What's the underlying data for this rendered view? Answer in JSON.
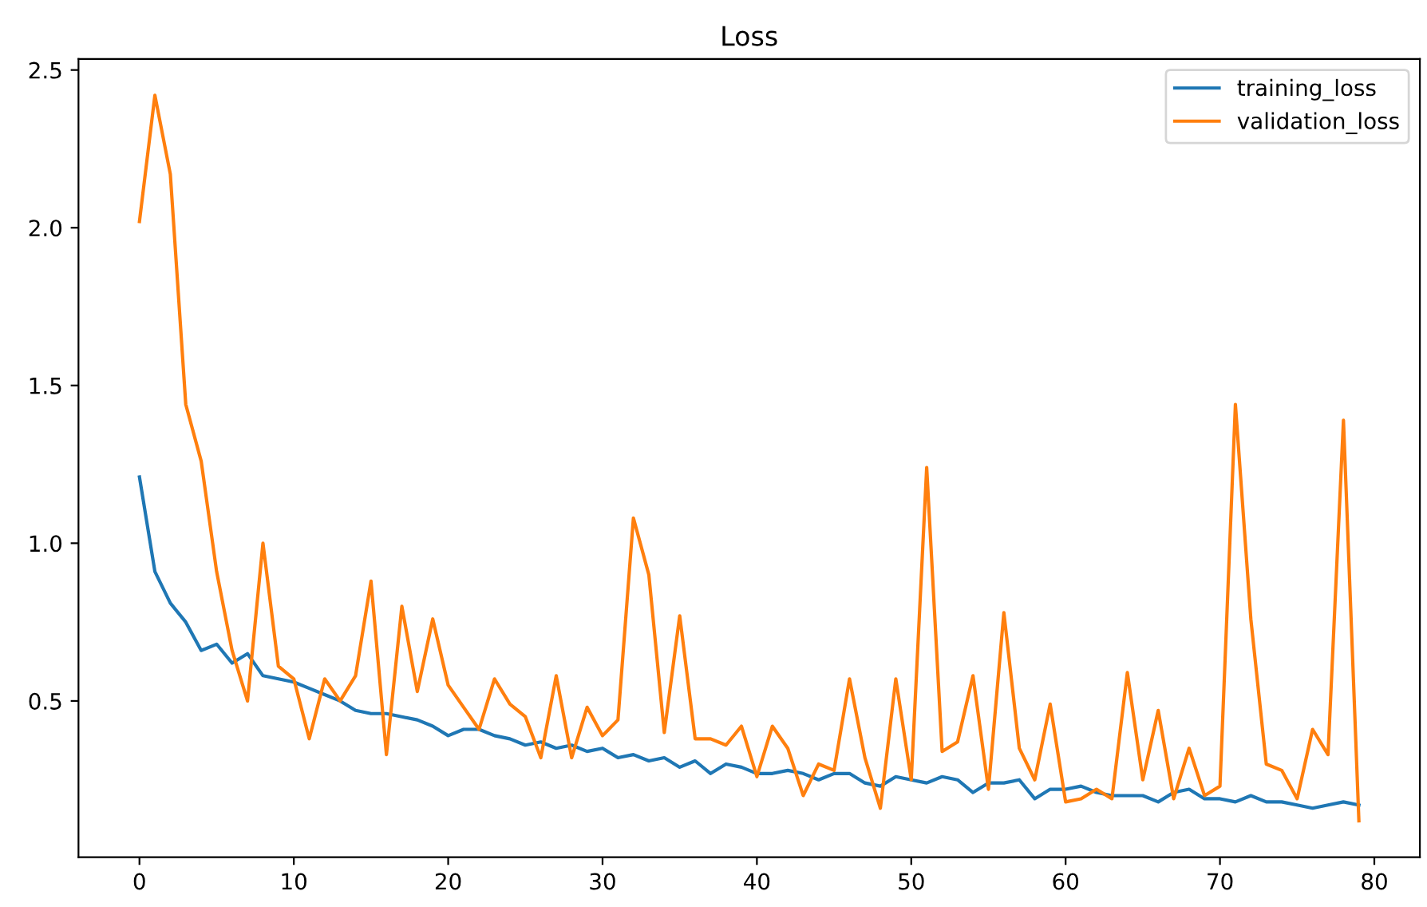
{
  "chart_data": {
    "type": "line",
    "title": "Loss",
    "x": [
      0,
      1,
      2,
      3,
      4,
      5,
      6,
      7,
      8,
      9,
      10,
      11,
      12,
      13,
      14,
      15,
      16,
      17,
      18,
      19,
      20,
      21,
      22,
      23,
      24,
      25,
      26,
      27,
      28,
      29,
      30,
      31,
      32,
      33,
      34,
      35,
      36,
      37,
      38,
      39,
      40,
      41,
      42,
      43,
      44,
      45,
      46,
      47,
      48,
      49,
      50,
      51,
      52,
      53,
      54,
      55,
      56,
      57,
      58,
      59,
      60,
      61,
      62,
      63,
      64,
      65,
      66,
      67,
      68,
      69,
      70,
      71,
      72,
      73,
      74,
      75,
      76,
      77,
      78,
      79
    ],
    "series": [
      {
        "name": "training_loss",
        "color": "#1f77b4",
        "values": [
          1.21,
          0.91,
          0.81,
          0.75,
          0.66,
          0.68,
          0.62,
          0.65,
          0.58,
          0.57,
          0.56,
          0.54,
          0.52,
          0.5,
          0.47,
          0.46,
          0.46,
          0.45,
          0.44,
          0.42,
          0.39,
          0.41,
          0.41,
          0.39,
          0.38,
          0.36,
          0.37,
          0.35,
          0.36,
          0.34,
          0.35,
          0.32,
          0.33,
          0.31,
          0.32,
          0.29,
          0.31,
          0.27,
          0.3,
          0.29,
          0.27,
          0.27,
          0.28,
          0.27,
          0.25,
          0.27,
          0.27,
          0.24,
          0.23,
          0.26,
          0.25,
          0.24,
          0.26,
          0.25,
          0.21,
          0.24,
          0.24,
          0.25,
          0.19,
          0.22,
          0.22,
          0.23,
          0.21,
          0.2,
          0.2,
          0.2,
          0.18,
          0.21,
          0.22,
          0.19,
          0.19,
          0.18,
          0.2,
          0.18,
          0.18,
          0.17,
          0.16,
          0.17,
          0.18,
          0.17
        ]
      },
      {
        "name": "validation_loss",
        "color": "#ff7f0e",
        "values": [
          2.02,
          2.42,
          2.17,
          1.44,
          1.26,
          0.91,
          0.66,
          0.5,
          1.0,
          0.61,
          0.57,
          0.38,
          0.57,
          0.5,
          0.58,
          0.88,
          0.33,
          0.8,
          0.53,
          0.76,
          0.55,
          0.48,
          0.41,
          0.57,
          0.49,
          0.45,
          0.32,
          0.58,
          0.32,
          0.48,
          0.39,
          0.44,
          1.08,
          0.9,
          0.4,
          0.77,
          0.38,
          0.38,
          0.36,
          0.42,
          0.26,
          0.42,
          0.35,
          0.2,
          0.3,
          0.28,
          0.57,
          0.32,
          0.16,
          0.57,
          0.25,
          1.24,
          0.34,
          0.37,
          0.58,
          0.22,
          0.78,
          0.35,
          0.25,
          0.49,
          0.18,
          0.19,
          0.22,
          0.19,
          0.59,
          0.25,
          0.47,
          0.19,
          0.35,
          0.2,
          0.23,
          1.44,
          0.76,
          0.3,
          0.28,
          0.19,
          0.41,
          0.33,
          1.39,
          0.12
        ]
      }
    ],
    "xlim": [
      -3.95,
      82.95
    ],
    "ylim": [
      0.005,
      2.535
    ],
    "xticks": [
      0,
      10,
      20,
      30,
      40,
      50,
      60,
      70,
      80
    ],
    "yticks": [
      {
        "value": 0.5,
        "label": "0.5"
      },
      {
        "value": 1.0,
        "label": "1.0"
      },
      {
        "value": 1.5,
        "label": "1.5"
      },
      {
        "value": 2.0,
        "label": "2.0"
      },
      {
        "value": 2.5,
        "label": "2.5"
      }
    ],
    "legend": "top right",
    "grid": false,
    "marker": "none",
    "line_style": "solid"
  }
}
